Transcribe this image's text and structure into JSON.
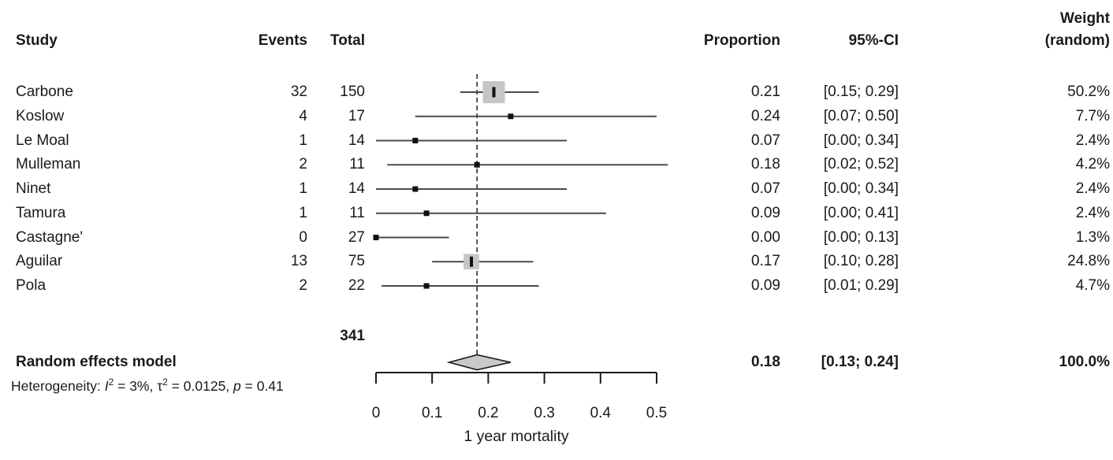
{
  "header": {
    "study": "Study",
    "events": "Events",
    "total": "Total",
    "proportion": "Proportion",
    "ci": "95%-CI",
    "weight_line1": "Weight",
    "weight_line2": "(random)"
  },
  "chart_data": {
    "type": "forest",
    "title": "",
    "xlabel": "1 year mortality",
    "xlim": [
      0,
      0.5
    ],
    "ticks": [
      0,
      0.1,
      0.2,
      0.3,
      0.4,
      0.5
    ],
    "tick_labels": [
      "0",
      "0.1",
      "0.2",
      "0.3",
      "0.4",
      "0.5"
    ],
    "vline": 0.18,
    "studies": [
      {
        "name": "Carbone",
        "events": "32",
        "total": "150",
        "proportion": "0.21",
        "ci": "[0.15; 0.29]",
        "weight": "50.2%",
        "weight_pct": 50.2,
        "est": 0.21,
        "lower": 0.15,
        "upper": 0.29
      },
      {
        "name": "Koslow",
        "events": "4",
        "total": "17",
        "proportion": "0.24",
        "ci": "[0.07; 0.50]",
        "weight": "7.7%",
        "weight_pct": 7.7,
        "est": 0.24,
        "lower": 0.07,
        "upper": 0.5
      },
      {
        "name": "Le Moal",
        "events": "1",
        "total": "14",
        "proportion": "0.07",
        "ci": "[0.00; 0.34]",
        "weight": "2.4%",
        "weight_pct": 2.4,
        "est": 0.07,
        "lower": 0.0,
        "upper": 0.34
      },
      {
        "name": "Mulleman",
        "events": "2",
        "total": "11",
        "proportion": "0.18",
        "ci": "[0.02; 0.52]",
        "weight": "4.2%",
        "weight_pct": 4.2,
        "est": 0.18,
        "lower": 0.02,
        "upper": 0.52
      },
      {
        "name": "Ninet",
        "events": "1",
        "total": "14",
        "proportion": "0.07",
        "ci": "[0.00; 0.34]",
        "weight": "2.4%",
        "weight_pct": 2.4,
        "est": 0.07,
        "lower": 0.0,
        "upper": 0.34
      },
      {
        "name": "Tamura",
        "events": "1",
        "total": "11",
        "proportion": "0.09",
        "ci": "[0.00; 0.41]",
        "weight": "2.4%",
        "weight_pct": 2.4,
        "est": 0.09,
        "lower": 0.0,
        "upper": 0.41
      },
      {
        "name": "Castagne'",
        "events": "0",
        "total": "27",
        "proportion": "0.00",
        "ci": "[0.00; 0.13]",
        "weight": "1.3%",
        "weight_pct": 1.3,
        "est": 0.0,
        "lower": 0.0,
        "upper": 0.13
      },
      {
        "name": "Aguilar",
        "events": "13",
        "total": "75",
        "proportion": "0.17",
        "ci": "[0.10; 0.28]",
        "weight": "24.8%",
        "weight_pct": 24.8,
        "est": 0.17,
        "lower": 0.1,
        "upper": 0.28
      },
      {
        "name": "Pola",
        "events": "2",
        "total": "22",
        "proportion": "0.09",
        "ci": "[0.01; 0.29]",
        "weight": "4.7%",
        "weight_pct": 4.7,
        "est": 0.09,
        "lower": 0.01,
        "upper": 0.29
      }
    ],
    "total_events": "341",
    "summary": {
      "label": "Random effects model",
      "proportion": "0.18",
      "ci": "[0.13; 0.24]",
      "weight": "100.0%",
      "est": 0.18,
      "lower": 0.13,
      "upper": 0.24
    },
    "heterogeneity_segments": [
      {
        "text": "Heterogeneity: "
      },
      {
        "text": "I",
        "italic": true
      },
      {
        "text": "2",
        "sup": true
      },
      {
        "text": " = 3%, "
      },
      {
        "text": "τ",
        "italic": false
      },
      {
        "text": "2",
        "sup": true
      },
      {
        "text": " = 0.0125, "
      },
      {
        "text": "p",
        "italic": true
      },
      {
        "text": " = 0.41"
      }
    ],
    "colors": {
      "text": "#1a1a1a",
      "ci_line": "#4a4a4a",
      "square_fill": "#c6c6c6",
      "marker": "#111111",
      "diamond_fill": "#c9c9c9",
      "diamond_stroke": "#1a1a1a",
      "axis": "#1a1a1a",
      "dashed_line": "#2e2e2e"
    }
  }
}
